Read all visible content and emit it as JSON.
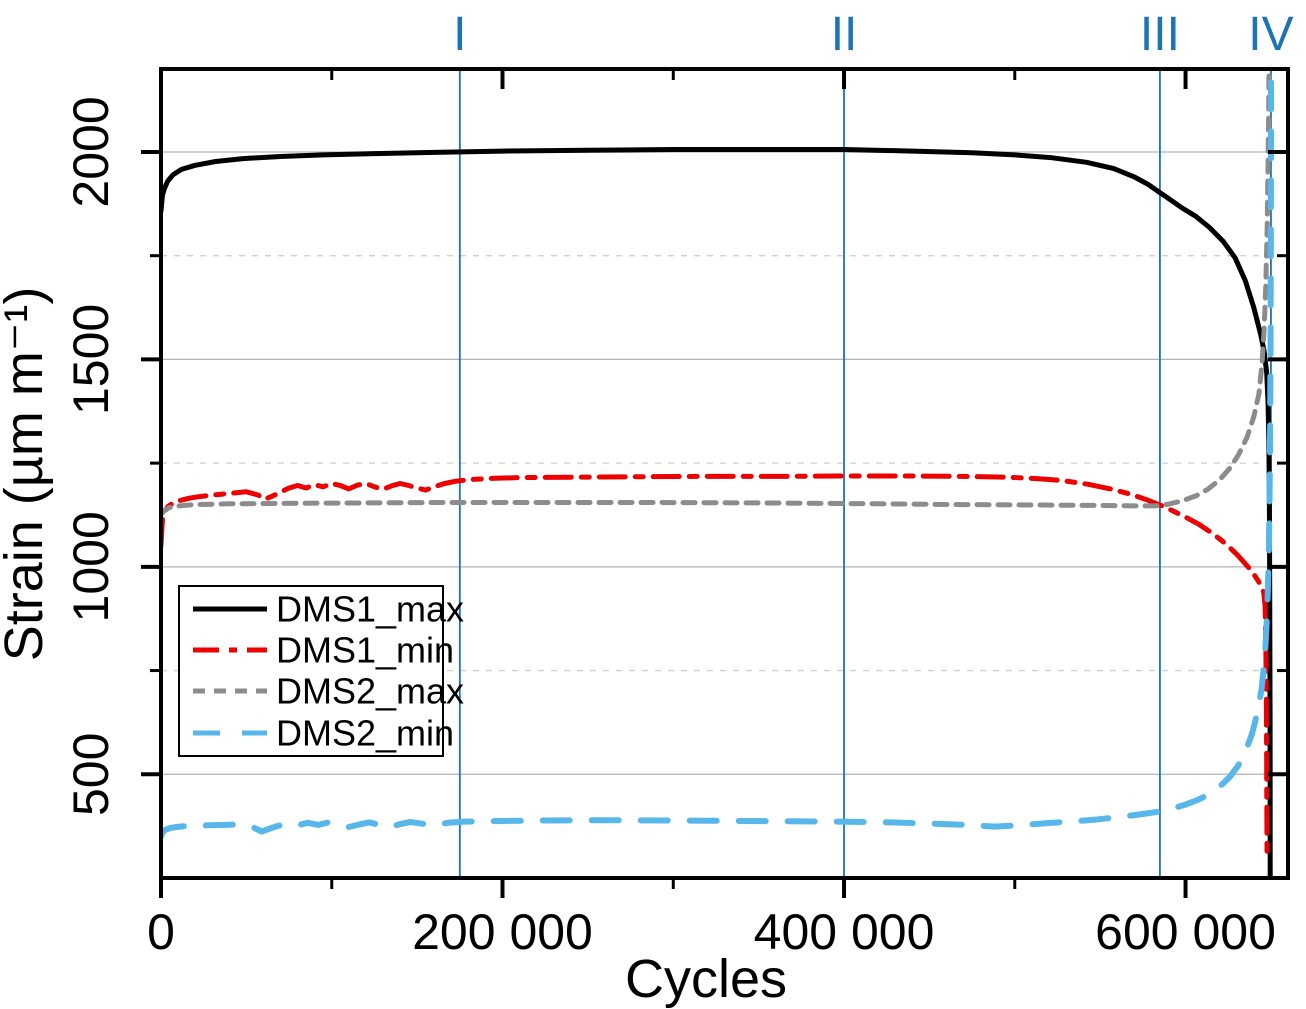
{
  "page": {
    "background": "#ffffff"
  },
  "chart_data": {
    "type": "line",
    "title": "",
    "xlabel": "Cycles",
    "ylabel": "Strain (µm m⁻¹)",
    "xlim": [
      0,
      660000
    ],
    "ylim": [
      250,
      2200
    ],
    "grid": {
      "major_style": "solid",
      "minor_style": "dashed",
      "major_color": "#b3b3b3",
      "minor_color": "#cfcfcf"
    },
    "x_major_ticks": [
      {
        "value": 0,
        "label": "0"
      },
      {
        "value": 200000,
        "label": "200 000"
      },
      {
        "value": 400000,
        "label": "400 000"
      },
      {
        "value": 600000,
        "label": "600 000"
      }
    ],
    "x_minor_ticks": [
      100000,
      300000,
      500000
    ],
    "y_major_ticks": [
      {
        "value": 500,
        "label": "500"
      },
      {
        "value": 1000,
        "label": "1000"
      },
      {
        "value": 1500,
        "label": "1500"
      },
      {
        "value": 2000,
        "label": "2000"
      }
    ],
    "y_minor_ticks": [
      750,
      1250,
      1750
    ],
    "stage_line_color": "#1b74b3",
    "stage_lines": [
      {
        "label": "I",
        "x": 175000
      },
      {
        "label": "II",
        "x": 400000
      },
      {
        "label": "III",
        "x": 585000
      },
      {
        "label": "IV",
        "x": 650000
      }
    ],
    "legend": {
      "entries": [
        "DMS1_max",
        "DMS1_min",
        "DMS2_max",
        "DMS2_min"
      ]
    },
    "series": [
      {
        "name": "DMS1_max",
        "color": "#000000",
        "dash": "solid",
        "width": 5,
        "points": [
          [
            0,
            1858
          ],
          [
            800,
            1895
          ],
          [
            2000,
            1912
          ],
          [
            4000,
            1930
          ],
          [
            7000,
            1945
          ],
          [
            12000,
            1958
          ],
          [
            20000,
            1968
          ],
          [
            32000,
            1977
          ],
          [
            48000,
            1984
          ],
          [
            70000,
            1989
          ],
          [
            95000,
            1993
          ],
          [
            125000,
            1996
          ],
          [
            160000,
            1999
          ],
          [
            200000,
            2002
          ],
          [
            250000,
            2004
          ],
          [
            300000,
            2006
          ],
          [
            350000,
            2006
          ],
          [
            400000,
            2006
          ],
          [
            440000,
            2002
          ],
          [
            475000,
            1998
          ],
          [
            500000,
            1993
          ],
          [
            522000,
            1986
          ],
          [
            542000,
            1975
          ],
          [
            558000,
            1960
          ],
          [
            570000,
            1940
          ],
          [
            578000,
            1922
          ],
          [
            584000,
            1905
          ],
          [
            590000,
            1888
          ],
          [
            598000,
            1865
          ],
          [
            606000,
            1845
          ],
          [
            614000,
            1818
          ],
          [
            622000,
            1785
          ],
          [
            629000,
            1745
          ],
          [
            635000,
            1690
          ],
          [
            640000,
            1625
          ],
          [
            644000,
            1560
          ],
          [
            646000,
            1520
          ],
          [
            647500,
            1468
          ],
          [
            648300,
            1400
          ],
          [
            648800,
            1300
          ],
          [
            649100,
            1150
          ],
          [
            649300,
            950
          ],
          [
            649500,
            600
          ],
          [
            649600,
            255
          ]
        ]
      },
      {
        "name": "DMS1_min",
        "color": "#ec0000",
        "dash": "dash-dot",
        "width": 5,
        "points": [
          [
            0,
            1052
          ],
          [
            400,
            1085
          ],
          [
            900,
            1115
          ],
          [
            2000,
            1132
          ],
          [
            4000,
            1145
          ],
          [
            7000,
            1154
          ],
          [
            11000,
            1160
          ],
          [
            16000,
            1165
          ],
          [
            22000,
            1169
          ],
          [
            30000,
            1173
          ],
          [
            40000,
            1177
          ],
          [
            50000,
            1181
          ],
          [
            57000,
            1173
          ],
          [
            61000,
            1163
          ],
          [
            65000,
            1170
          ],
          [
            70000,
            1180
          ],
          [
            75000,
            1190
          ],
          [
            80000,
            1196
          ],
          [
            85000,
            1190
          ],
          [
            90000,
            1198
          ],
          [
            95000,
            1193
          ],
          [
            100000,
            1201
          ],
          [
            105000,
            1196
          ],
          [
            110000,
            1188
          ],
          [
            115000,
            1197
          ],
          [
            120000,
            1201
          ],
          [
            125000,
            1193
          ],
          [
            130000,
            1187
          ],
          [
            135000,
            1195
          ],
          [
            140000,
            1201
          ],
          [
            145000,
            1196
          ],
          [
            150000,
            1190
          ],
          [
            155000,
            1185
          ],
          [
            160000,
            1193
          ],
          [
            166000,
            1201
          ],
          [
            172000,
            1206
          ],
          [
            180000,
            1210
          ],
          [
            192000,
            1213
          ],
          [
            210000,
            1215
          ],
          [
            240000,
            1216
          ],
          [
            275000,
            1217
          ],
          [
            315000,
            1218
          ],
          [
            360000,
            1218
          ],
          [
            400000,
            1219
          ],
          [
            440000,
            1219
          ],
          [
            470000,
            1218
          ],
          [
            495000,
            1216
          ],
          [
            512000,
            1213
          ],
          [
            528000,
            1208
          ],
          [
            543000,
            1199
          ],
          [
            556000,
            1188
          ],
          [
            567000,
            1176
          ],
          [
            577000,
            1162
          ],
          [
            585000,
            1149
          ],
          [
            592000,
            1136
          ],
          [
            600000,
            1120
          ],
          [
            608000,
            1102
          ],
          [
            616000,
            1080
          ],
          [
            624000,
            1054
          ],
          [
            631000,
            1026
          ],
          [
            637000,
            998
          ],
          [
            641000,
            976
          ],
          [
            644000,
            956
          ],
          [
            645800,
            938
          ],
          [
            646600,
            905
          ],
          [
            647000,
            820
          ],
          [
            647300,
            690
          ],
          [
            647500,
            520
          ],
          [
            647650,
            380
          ],
          [
            647750,
            292
          ]
        ]
      },
      {
        "name": "DMS2_max",
        "color": "#8c8c8c",
        "dash": "dash",
        "width": 5,
        "points": [
          [
            0,
            1126
          ],
          [
            2000,
            1136
          ],
          [
            5000,
            1143
          ],
          [
            10000,
            1147
          ],
          [
            20000,
            1150
          ],
          [
            40000,
            1152
          ],
          [
            70000,
            1153
          ],
          [
            110000,
            1154
          ],
          [
            160000,
            1155
          ],
          [
            220000,
            1155
          ],
          [
            290000,
            1155
          ],
          [
            360000,
            1154
          ],
          [
            420000,
            1152
          ],
          [
            470000,
            1150
          ],
          [
            510000,
            1149
          ],
          [
            545000,
            1148
          ],
          [
            570000,
            1147
          ],
          [
            582000,
            1147
          ],
          [
            590000,
            1151
          ],
          [
            598000,
            1159
          ],
          [
            606000,
            1171
          ],
          [
            613000,
            1187
          ],
          [
            620000,
            1210
          ],
          [
            626000,
            1238
          ],
          [
            631000,
            1270
          ],
          [
            636000,
            1312
          ],
          [
            640000,
            1362
          ],
          [
            643000,
            1418
          ],
          [
            644800,
            1490
          ],
          [
            646000,
            1570
          ],
          [
            647000,
            1680
          ],
          [
            647800,
            1820
          ],
          [
            648300,
            1960
          ],
          [
            648700,
            2100
          ],
          [
            648900,
            2210
          ]
        ]
      },
      {
        "name": "DMS2_min",
        "color": "#57b7ea",
        "dash": "long-dash",
        "width": 6,
        "points": [
          [
            0,
            350
          ],
          [
            1000,
            360
          ],
          [
            2500,
            366
          ],
          [
            5000,
            370
          ],
          [
            9000,
            373
          ],
          [
            14000,
            375
          ],
          [
            20000,
            376
          ],
          [
            28000,
            377
          ],
          [
            37000,
            378
          ],
          [
            46000,
            379
          ],
          [
            54000,
            372
          ],
          [
            59000,
            362
          ],
          [
            63000,
            368
          ],
          [
            68000,
            375
          ],
          [
            74000,
            381
          ],
          [
            80000,
            377
          ],
          [
            86000,
            383
          ],
          [
            92000,
            378
          ],
          [
            98000,
            384
          ],
          [
            104000,
            379
          ],
          [
            110000,
            373
          ],
          [
            116000,
            379
          ],
          [
            122000,
            384
          ],
          [
            128000,
            378
          ],
          [
            134000,
            373
          ],
          [
            140000,
            380
          ],
          [
            146000,
            385
          ],
          [
            153000,
            381
          ],
          [
            160000,
            377
          ],
          [
            168000,
            383
          ],
          [
            178000,
            386
          ],
          [
            192000,
            387
          ],
          [
            212000,
            388
          ],
          [
            242000,
            389
          ],
          [
            278000,
            389
          ],
          [
            318000,
            388
          ],
          [
            358000,
            387
          ],
          [
            398000,
            386
          ],
          [
            428000,
            384
          ],
          [
            452000,
            381
          ],
          [
            472000,
            378
          ],
          [
            488000,
            374
          ],
          [
            503000,
            377
          ],
          [
            518000,
            382
          ],
          [
            533000,
            386
          ],
          [
            548000,
            391
          ],
          [
            561000,
            397
          ],
          [
            573000,
            403
          ],
          [
            583000,
            409
          ],
          [
            592000,
            417
          ],
          [
            600000,
            427
          ],
          [
            607000,
            438
          ],
          [
            614000,
            452
          ],
          [
            620000,
            470
          ],
          [
            626000,
            494
          ],
          [
            631000,
            522
          ],
          [
            635000,
            554
          ],
          [
            639000,
            598
          ],
          [
            642000,
            648
          ],
          [
            644500,
            704
          ],
          [
            646400,
            780
          ],
          [
            647800,
            890
          ],
          [
            648800,
            1040
          ],
          [
            649400,
            1250
          ],
          [
            649800,
            1550
          ],
          [
            650000,
            1850
          ],
          [
            650100,
            2210
          ]
        ]
      }
    ]
  }
}
